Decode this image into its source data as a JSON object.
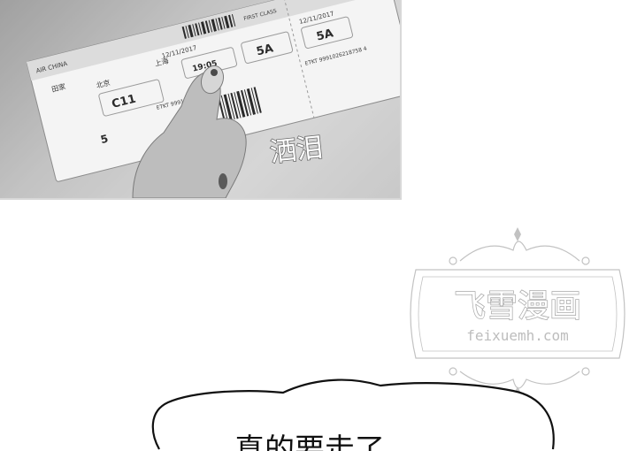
{
  "photo": {
    "caption": "洒泪",
    "ticket": {
      "brand": "AIR CHINA",
      "class_label": "FIRST CLASS",
      "date_main": "12/11/2017",
      "date_stub": "12/11/2017",
      "name": "田家",
      "origin": "北京",
      "destination": "上海",
      "gate": "C11",
      "time": "19:05",
      "seat_main": "5A",
      "seat_stub": "5A",
      "boarding_group": "5",
      "eticket_main": "ETKT 9991026218758",
      "eticket_stub": "ETKT 9991026218758 4"
    }
  },
  "watermark": {
    "title": "飞雪漫画",
    "url": "feixuemh.com"
  },
  "speech_bubble": {
    "text": "真的要走了"
  }
}
